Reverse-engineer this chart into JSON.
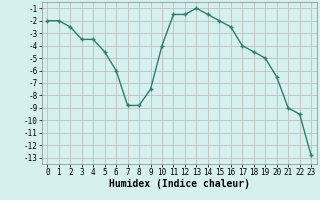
{
  "x": [
    0,
    1,
    2,
    3,
    4,
    5,
    6,
    7,
    8,
    9,
    10,
    11,
    12,
    13,
    14,
    15,
    16,
    17,
    18,
    19,
    20,
    21,
    22,
    23
  ],
  "y": [
    -2,
    -2,
    -2.5,
    -3.5,
    -3.5,
    -4.5,
    -6,
    -8.8,
    -8.8,
    -7.5,
    -4,
    -1.5,
    -1.5,
    -1,
    -1.5,
    -2,
    -2.5,
    -4,
    -4.5,
    -5,
    -6.5,
    -9,
    -9.5,
    -12.8
  ],
  "xlabel": "Humidex (Indice chaleur)",
  "line_color": "#2e7d6e",
  "marker": "+",
  "bg_color": "#d6f0f0",
  "grid_color": "#c0c0b8",
  "xlim": [
    -0.5,
    23.5
  ],
  "ylim": [
    -13.5,
    -0.5
  ],
  "yticks": [
    -1,
    -2,
    -3,
    -4,
    -5,
    -6,
    -7,
    -8,
    -9,
    -10,
    -11,
    -12,
    -13
  ],
  "xticks": [
    0,
    1,
    2,
    3,
    4,
    5,
    6,
    7,
    8,
    9,
    10,
    11,
    12,
    13,
    14,
    15,
    16,
    17,
    18,
    19,
    20,
    21,
    22,
    23
  ],
  "tick_fontsize": 5.5,
  "label_fontsize": 7,
  "linewidth": 1.0,
  "markersize": 3.5
}
